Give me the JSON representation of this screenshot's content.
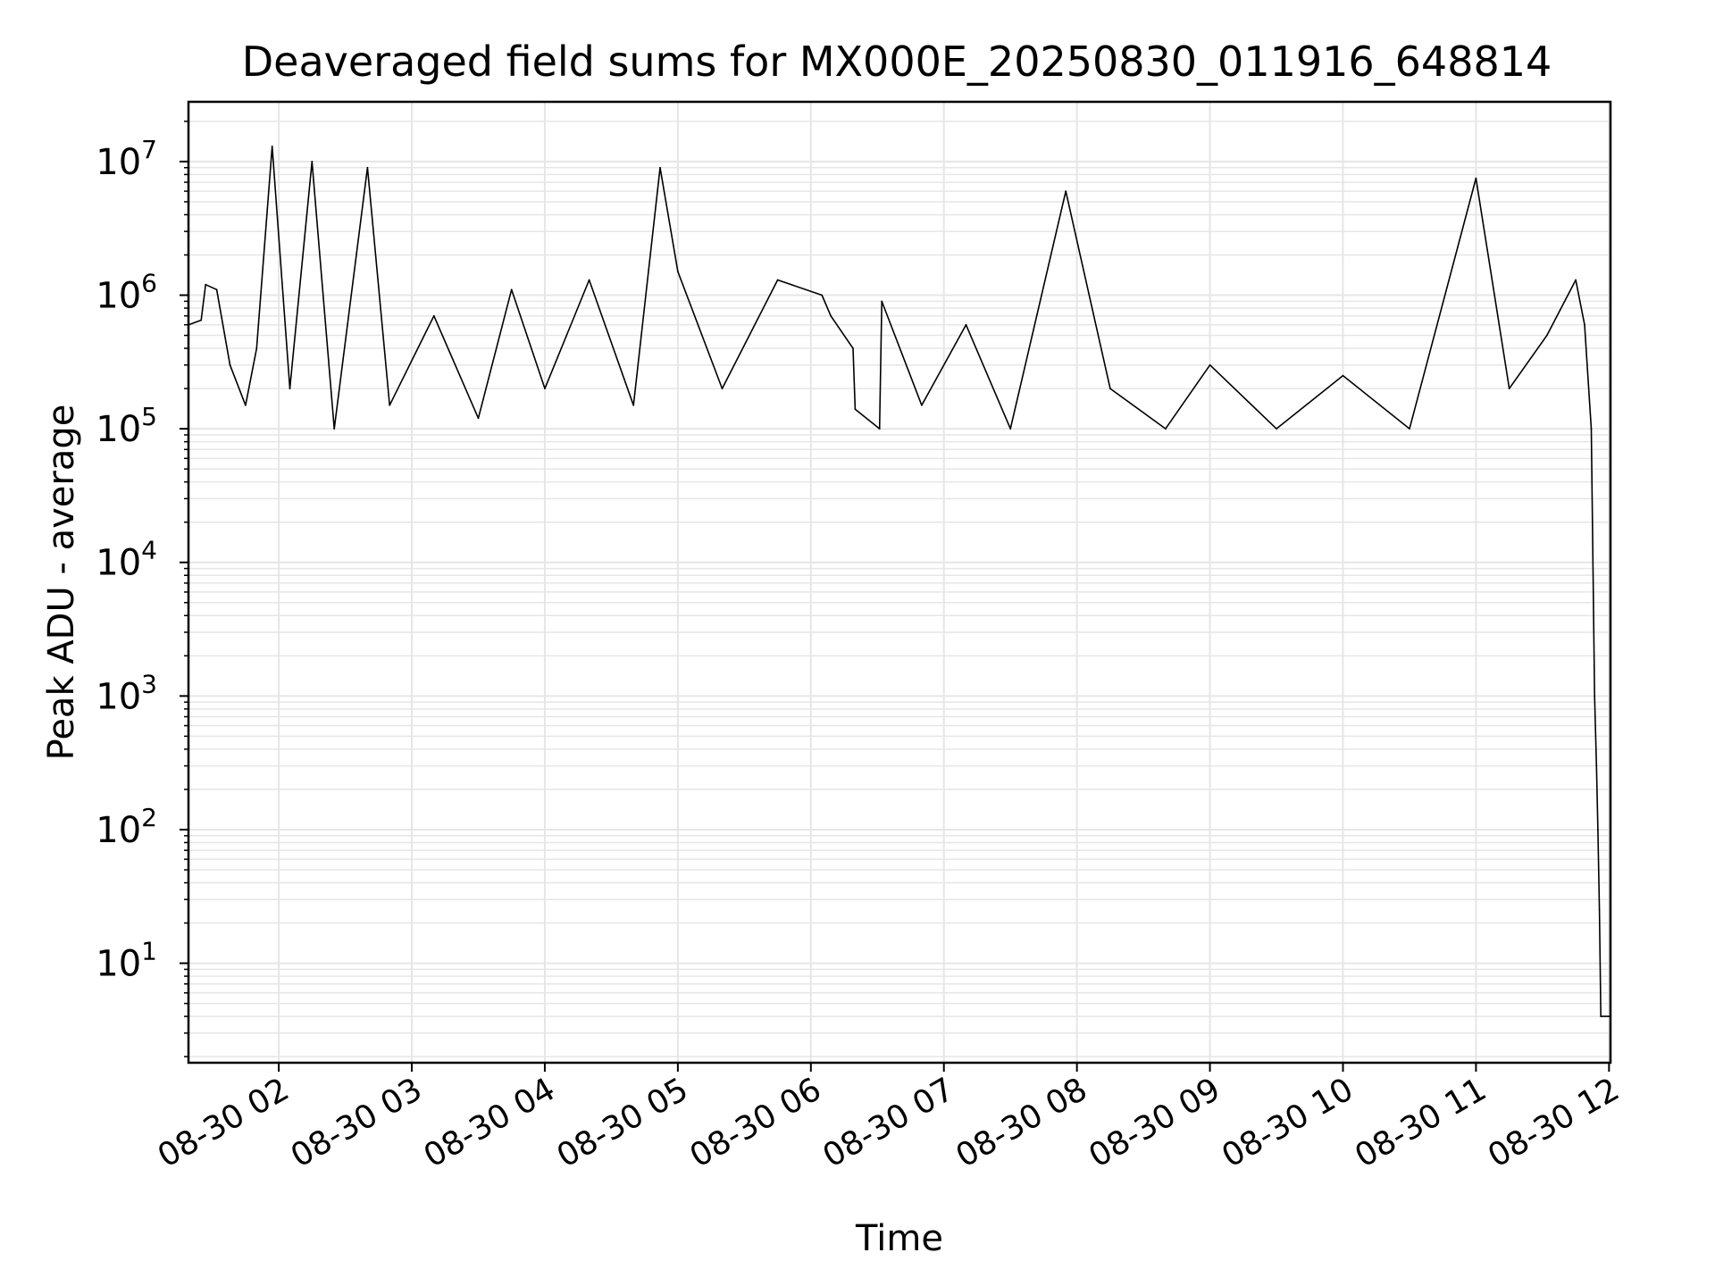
{
  "chart_data": {
    "type": "line",
    "title": "Deaveraged field sums for MX000E_20250830_011916_648814",
    "xlabel": "Time",
    "ylabel": "Peak ADU - average",
    "x_axis_type": "datetime",
    "xlim": [
      "2025-08-30T01:19:16",
      "2025-08-30T12:00:40"
    ],
    "yscale": "log",
    "ylim": [
      1.8,
      28000000
    ],
    "grid": "on (major and minor)",
    "legend": "none",
    "line_color": "#000000",
    "grid_color": "#e6e6e6",
    "x_ticks": [
      {
        "t": "2025-08-30T02:00:00",
        "label": "08-30 02"
      },
      {
        "t": "2025-08-30T03:00:00",
        "label": "08-30 03"
      },
      {
        "t": "2025-08-30T04:00:00",
        "label": "08-30 04"
      },
      {
        "t": "2025-08-30T05:00:00",
        "label": "08-30 05"
      },
      {
        "t": "2025-08-30T06:00:00",
        "label": "08-30 06"
      },
      {
        "t": "2025-08-30T07:00:00",
        "label": "08-30 07"
      },
      {
        "t": "2025-08-30T08:00:00",
        "label": "08-30 08"
      },
      {
        "t": "2025-08-30T09:00:00",
        "label": "08-30 09"
      },
      {
        "t": "2025-08-30T10:00:00",
        "label": "08-30 10"
      },
      {
        "t": "2025-08-30T11:00:00",
        "label": "08-30 11"
      },
      {
        "t": "2025-08-30T12:00:00",
        "label": "08-30 12"
      }
    ],
    "y_ticks": [
      {
        "value": 10,
        "base": "10",
        "exp": "1"
      },
      {
        "value": 100,
        "base": "10",
        "exp": "2"
      },
      {
        "value": 1000,
        "base": "10",
        "exp": "3"
      },
      {
        "value": 10000,
        "base": "10",
        "exp": "4"
      },
      {
        "value": 100000,
        "base": "10",
        "exp": "5"
      },
      {
        "value": 1000000,
        "base": "10",
        "exp": "6"
      },
      {
        "value": 10000000,
        "base": "10",
        "exp": "7"
      }
    ],
    "series": [
      {
        "points": [
          [
            "2025-08-30T01:19:16",
            600000
          ],
          [
            "2025-08-30T01:25:00",
            650000
          ],
          [
            "2025-08-30T01:27:00",
            1200000
          ],
          [
            "2025-08-30T01:32:00",
            1100000
          ],
          [
            "2025-08-30T01:38:00",
            300000
          ],
          [
            "2025-08-30T01:45:00",
            150000
          ],
          [
            "2025-08-30T01:50:00",
            400000
          ],
          [
            "2025-08-30T01:57:00",
            13000000
          ],
          [
            "2025-08-30T02:05:00",
            200000
          ],
          [
            "2025-08-30T02:15:00",
            10000000
          ],
          [
            "2025-08-30T02:25:00",
            100000
          ],
          [
            "2025-08-30T02:40:00",
            9000000
          ],
          [
            "2025-08-30T02:50:00",
            150000
          ],
          [
            "2025-08-30T03:10:00",
            700000
          ],
          [
            "2025-08-30T03:30:00",
            120000
          ],
          [
            "2025-08-30T03:45:00",
            1100000
          ],
          [
            "2025-08-30T04:00:00",
            200000
          ],
          [
            "2025-08-30T04:20:00",
            1300000
          ],
          [
            "2025-08-30T04:40:00",
            150000
          ],
          [
            "2025-08-30T04:52:00",
            9000000
          ],
          [
            "2025-08-30T05:00:00",
            1500000
          ],
          [
            "2025-08-30T05:20:00",
            200000
          ],
          [
            "2025-08-30T05:45:00",
            1300000
          ],
          [
            "2025-08-30T06:05:00",
            1000000
          ],
          [
            "2025-08-30T06:09:00",
            700000
          ],
          [
            "2025-08-30T06:19:00",
            400000
          ],
          [
            "2025-08-30T06:20:00",
            140000
          ],
          [
            "2025-08-30T06:31:00",
            100000
          ],
          [
            "2025-08-30T06:32:00",
            900000
          ],
          [
            "2025-08-30T06:50:00",
            150000
          ],
          [
            "2025-08-30T07:10:00",
            600000
          ],
          [
            "2025-08-30T07:30:00",
            100000
          ],
          [
            "2025-08-30T07:55:00",
            6000000
          ],
          [
            "2025-08-30T08:15:00",
            200000
          ],
          [
            "2025-08-30T08:40:00",
            100000
          ],
          [
            "2025-08-30T09:00:00",
            300000
          ],
          [
            "2025-08-30T09:30:00",
            100000
          ],
          [
            "2025-08-30T10:00:00",
            250000
          ],
          [
            "2025-08-30T10:30:00",
            100000
          ],
          [
            "2025-08-30T11:00:00",
            7500000
          ],
          [
            "2025-08-30T11:15:00",
            200000
          ],
          [
            "2025-08-30T11:32:00",
            500000
          ],
          [
            "2025-08-30T11:40:00",
            900000
          ],
          [
            "2025-08-30T11:45:00",
            1300000
          ],
          [
            "2025-08-30T11:49:00",
            600000
          ],
          [
            "2025-08-30T11:52:00",
            100000
          ],
          [
            "2025-08-30T11:53:30",
            1000
          ],
          [
            "2025-08-30T11:54:20",
            300
          ],
          [
            "2025-08-30T11:55:00",
            100
          ],
          [
            "2025-08-30T11:55:40",
            25
          ],
          [
            "2025-08-30T11:56:20",
            4
          ],
          [
            "2025-08-30T12:00:40",
            4
          ]
        ]
      }
    ]
  }
}
